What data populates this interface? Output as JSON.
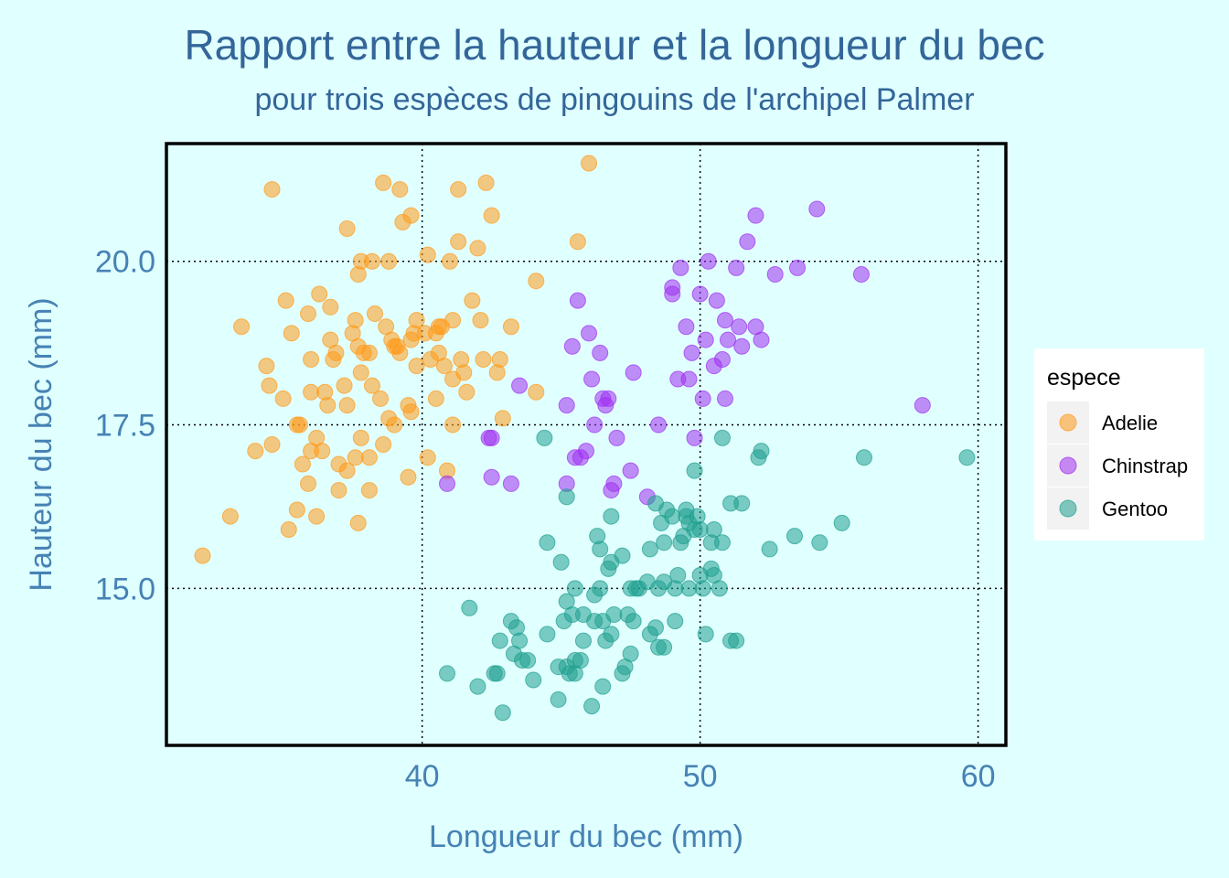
{
  "chart_data": {
    "type": "scatter",
    "title": "Rapport entre la hauteur et la longueur du bec",
    "subtitle": "pour trois espèces de pingouins de l'archipel Palmer",
    "xlabel": "Longueur du bec (mm)",
    "ylabel": "Hauteur du bec (mm)",
    "xlim": [
      30.8,
      61.0
    ],
    "ylim": [
      12.6,
      21.8
    ],
    "xticks": [
      40,
      50,
      60
    ],
    "yticks": [
      15.0,
      17.5,
      20.0
    ],
    "xtick_labels": [
      "40",
      "50",
      "60"
    ],
    "ytick_labels": [
      "15.0",
      "17.5",
      "20.0"
    ],
    "grid": true,
    "legend": {
      "title": "espece",
      "position": "right"
    },
    "series": [
      {
        "name": "Adelie",
        "color": "#ff9a1a",
        "points": [
          [
            32.1,
            15.5
          ],
          [
            33.1,
            16.1
          ],
          [
            33.5,
            19.0
          ],
          [
            34.0,
            17.1
          ],
          [
            34.4,
            18.4
          ],
          [
            34.5,
            18.1
          ],
          [
            34.6,
            21.1
          ],
          [
            34.6,
            17.2
          ],
          [
            35.0,
            17.9
          ],
          [
            35.1,
            19.4
          ],
          [
            35.2,
            15.9
          ],
          [
            35.3,
            18.9
          ],
          [
            35.5,
            17.5
          ],
          [
            35.5,
            16.2
          ],
          [
            35.6,
            17.5
          ],
          [
            35.7,
            16.9
          ],
          [
            35.9,
            19.2
          ],
          [
            35.9,
            16.6
          ],
          [
            36.0,
            18.5
          ],
          [
            36.0,
            18.0
          ],
          [
            36.0,
            17.1
          ],
          [
            36.2,
            17.3
          ],
          [
            36.2,
            16.1
          ],
          [
            36.3,
            19.5
          ],
          [
            36.4,
            17.1
          ],
          [
            36.5,
            18.0
          ],
          [
            36.6,
            17.8
          ],
          [
            36.7,
            19.3
          ],
          [
            36.7,
            18.8
          ],
          [
            36.8,
            18.5
          ],
          [
            36.9,
            18.6
          ],
          [
            37.0,
            16.9
          ],
          [
            37.0,
            16.5
          ],
          [
            37.2,
            18.1
          ],
          [
            37.3,
            20.5
          ],
          [
            37.3,
            17.8
          ],
          [
            37.3,
            16.8
          ],
          [
            37.5,
            18.9
          ],
          [
            37.6,
            19.1
          ],
          [
            37.6,
            17.0
          ],
          [
            37.7,
            19.8
          ],
          [
            37.7,
            18.7
          ],
          [
            37.7,
            16.0
          ],
          [
            37.8,
            20.0
          ],
          [
            37.8,
            18.3
          ],
          [
            37.8,
            17.3
          ],
          [
            37.9,
            18.6
          ],
          [
            38.1,
            18.6
          ],
          [
            38.1,
            17.0
          ],
          [
            38.1,
            16.5
          ],
          [
            38.2,
            20.0
          ],
          [
            38.2,
            18.1
          ],
          [
            38.3,
            19.2
          ],
          [
            38.5,
            17.9
          ],
          [
            38.6,
            21.2
          ],
          [
            38.6,
            17.2
          ],
          [
            38.7,
            19.0
          ],
          [
            38.8,
            20.0
          ],
          [
            38.8,
            17.6
          ],
          [
            38.9,
            18.8
          ],
          [
            39.0,
            18.7
          ],
          [
            39.0,
            17.5
          ],
          [
            39.1,
            18.7
          ],
          [
            39.2,
            21.1
          ],
          [
            39.2,
            18.6
          ],
          [
            39.3,
            20.6
          ],
          [
            39.5,
            17.8
          ],
          [
            39.5,
            16.7
          ],
          [
            39.6,
            20.7
          ],
          [
            39.6,
            18.8
          ],
          [
            39.6,
            17.7
          ],
          [
            39.7,
            18.9
          ],
          [
            39.8,
            19.1
          ],
          [
            39.8,
            18.4
          ],
          [
            40.1,
            18.9
          ],
          [
            40.2,
            20.1
          ],
          [
            40.2,
            17.0
          ],
          [
            40.3,
            18.5
          ],
          [
            40.5,
            18.9
          ],
          [
            40.5,
            17.9
          ],
          [
            40.6,
            19.0
          ],
          [
            40.6,
            18.6
          ],
          [
            40.7,
            19.0
          ],
          [
            40.8,
            18.4
          ],
          [
            40.9,
            16.8
          ],
          [
            41.0,
            20.0
          ],
          [
            41.1,
            19.1
          ],
          [
            41.1,
            18.2
          ],
          [
            41.1,
            17.5
          ],
          [
            41.3,
            21.1
          ],
          [
            41.3,
            20.3
          ],
          [
            41.4,
            18.5
          ],
          [
            41.5,
            18.3
          ],
          [
            41.6,
            18.0
          ],
          [
            41.8,
            19.4
          ],
          [
            42.0,
            20.2
          ],
          [
            42.1,
            19.1
          ],
          [
            42.2,
            18.5
          ],
          [
            42.3,
            21.2
          ],
          [
            42.5,
            20.7
          ],
          [
            42.7,
            18.3
          ],
          [
            42.8,
            18.5
          ],
          [
            42.9,
            17.6
          ],
          [
            43.2,
            19.0
          ],
          [
            44.1,
            19.7
          ],
          [
            44.1,
            18.0
          ],
          [
            45.6,
            20.3
          ],
          [
            46.0,
            21.5
          ]
        ]
      },
      {
        "name": "Chinstrap",
        "color": "#a030f0",
        "points": [
          [
            40.9,
            16.6
          ],
          [
            42.4,
            17.3
          ],
          [
            42.5,
            16.7
          ],
          [
            42.5,
            17.3
          ],
          [
            43.2,
            16.6
          ],
          [
            43.5,
            18.1
          ],
          [
            45.2,
            17.8
          ],
          [
            45.2,
            16.6
          ],
          [
            45.4,
            18.7
          ],
          [
            45.5,
            17.0
          ],
          [
            45.6,
            19.4
          ],
          [
            45.7,
            17.0
          ],
          [
            45.9,
            17.1
          ],
          [
            46.0,
            18.9
          ],
          [
            46.1,
            18.2
          ],
          [
            46.2,
            17.5
          ],
          [
            46.4,
            18.6
          ],
          [
            46.5,
            17.9
          ],
          [
            46.6,
            17.8
          ],
          [
            46.7,
            17.9
          ],
          [
            46.8,
            16.5
          ],
          [
            46.9,
            16.6
          ],
          [
            47.0,
            17.3
          ],
          [
            47.5,
            16.8
          ],
          [
            47.6,
            18.3
          ],
          [
            48.1,
            16.4
          ],
          [
            48.5,
            17.5
          ],
          [
            49.0,
            19.5
          ],
          [
            49.0,
            19.6
          ],
          [
            49.2,
            18.2
          ],
          [
            49.3,
            19.9
          ],
          [
            49.5,
            19.0
          ],
          [
            49.6,
            18.2
          ],
          [
            49.7,
            18.6
          ],
          [
            49.8,
            17.3
          ],
          [
            50.0,
            19.5
          ],
          [
            50.1,
            17.9
          ],
          [
            50.2,
            18.8
          ],
          [
            50.3,
            20.0
          ],
          [
            50.5,
            18.4
          ],
          [
            50.6,
            19.4
          ],
          [
            50.8,
            18.5
          ],
          [
            50.9,
            19.1
          ],
          [
            50.9,
            17.9
          ],
          [
            51.0,
            18.8
          ],
          [
            51.3,
            19.9
          ],
          [
            51.4,
            19.0
          ],
          [
            51.5,
            18.7
          ],
          [
            51.7,
            20.3
          ],
          [
            52.0,
            20.7
          ],
          [
            52.0,
            19.0
          ],
          [
            52.2,
            18.8
          ],
          [
            52.7,
            19.8
          ],
          [
            53.5,
            19.9
          ],
          [
            54.2,
            20.8
          ],
          [
            55.8,
            19.8
          ],
          [
            58.0,
            17.8
          ]
        ]
      },
      {
        "name": "Gentoo",
        "color": "#20a090",
        "points": [
          [
            40.9,
            13.7
          ],
          [
            41.7,
            14.7
          ],
          [
            42.0,
            13.5
          ],
          [
            42.6,
            13.7
          ],
          [
            42.7,
            13.7
          ],
          [
            42.8,
            14.2
          ],
          [
            42.9,
            13.1
          ],
          [
            43.2,
            14.5
          ],
          [
            43.3,
            14.0
          ],
          [
            43.4,
            14.4
          ],
          [
            43.5,
            14.2
          ],
          [
            43.6,
            13.9
          ],
          [
            43.8,
            13.9
          ],
          [
            44.0,
            13.6
          ],
          [
            44.4,
            17.3
          ],
          [
            44.5,
            14.3
          ],
          [
            44.5,
            15.7
          ],
          [
            44.9,
            13.3
          ],
          [
            44.9,
            13.8
          ],
          [
            45.0,
            15.4
          ],
          [
            45.1,
            14.5
          ],
          [
            45.2,
            14.8
          ],
          [
            45.2,
            13.8
          ],
          [
            45.2,
            16.4
          ],
          [
            45.3,
            13.7
          ],
          [
            45.4,
            14.6
          ],
          [
            45.5,
            13.7
          ],
          [
            45.5,
            13.9
          ],
          [
            45.5,
            15.0
          ],
          [
            45.7,
            13.9
          ],
          [
            45.8,
            14.2
          ],
          [
            45.8,
            14.6
          ],
          [
            46.1,
            13.2
          ],
          [
            46.2,
            14.5
          ],
          [
            46.2,
            14.9
          ],
          [
            46.3,
            15.8
          ],
          [
            46.4,
            15.0
          ],
          [
            46.4,
            15.6
          ],
          [
            46.5,
            13.5
          ],
          [
            46.5,
            14.5
          ],
          [
            46.6,
            14.2
          ],
          [
            46.7,
            15.3
          ],
          [
            46.8,
            14.3
          ],
          [
            46.8,
            15.4
          ],
          [
            46.8,
            16.1
          ],
          [
            46.9,
            14.6
          ],
          [
            47.2,
            13.7
          ],
          [
            47.2,
            15.5
          ],
          [
            47.3,
            13.8
          ],
          [
            47.4,
            14.6
          ],
          [
            47.5,
            14.0
          ],
          [
            47.5,
            15.0
          ],
          [
            47.6,
            14.5
          ],
          [
            47.7,
            15.0
          ],
          [
            47.8,
            15.0
          ],
          [
            48.1,
            15.1
          ],
          [
            48.2,
            14.3
          ],
          [
            48.2,
            15.6
          ],
          [
            48.4,
            14.4
          ],
          [
            48.4,
            16.3
          ],
          [
            48.5,
            14.1
          ],
          [
            48.5,
            15.0
          ],
          [
            48.6,
            16.0
          ],
          [
            48.7,
            14.1
          ],
          [
            48.7,
            15.1
          ],
          [
            48.7,
            15.7
          ],
          [
            48.8,
            16.2
          ],
          [
            49.0,
            16.1
          ],
          [
            49.1,
            14.5
          ],
          [
            49.1,
            15.0
          ],
          [
            49.2,
            15.2
          ],
          [
            49.3,
            15.7
          ],
          [
            49.4,
            15.8
          ],
          [
            49.5,
            16.1
          ],
          [
            49.5,
            16.2
          ],
          [
            49.6,
            15.0
          ],
          [
            49.6,
            16.0
          ],
          [
            49.8,
            15.9
          ],
          [
            49.8,
            16.8
          ],
          [
            49.9,
            16.1
          ],
          [
            50.0,
            15.2
          ],
          [
            50.0,
            15.9
          ],
          [
            50.1,
            15.0
          ],
          [
            50.2,
            14.3
          ],
          [
            50.4,
            15.3
          ],
          [
            50.4,
            15.7
          ],
          [
            50.5,
            15.2
          ],
          [
            50.5,
            15.9
          ],
          [
            50.7,
            15.0
          ],
          [
            50.8,
            15.7
          ],
          [
            50.8,
            17.3
          ],
          [
            51.1,
            14.2
          ],
          [
            51.1,
            16.3
          ],
          [
            51.3,
            14.2
          ],
          [
            51.5,
            16.3
          ],
          [
            52.1,
            17.0
          ],
          [
            52.2,
            17.1
          ],
          [
            52.5,
            15.6
          ],
          [
            53.4,
            15.8
          ],
          [
            54.3,
            15.7
          ],
          [
            55.1,
            16.0
          ],
          [
            55.9,
            17.0
          ],
          [
            59.6,
            17.0
          ]
        ]
      }
    ]
  }
}
